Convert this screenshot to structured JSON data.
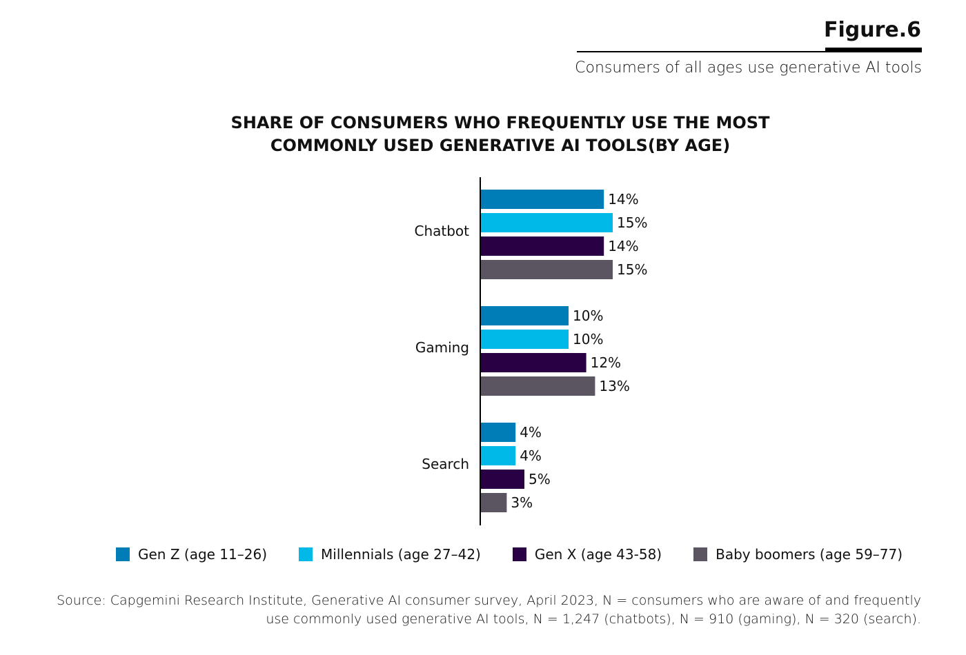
{
  "header": {
    "figure_label": "Figure.6",
    "subtitle": "Consumers of all ages use generative AI tools"
  },
  "chart_data": {
    "type": "bar",
    "orientation": "horizontal",
    "title": "SHARE OF CONSUMERS WHO FREQUENTLY USE THE MOST COMMONLY USED GENERATIVE AI TOOLS(BY AGE)",
    "title_lines": [
      "SHARE OF CONSUMERS WHO FREQUENTLY USE THE MOST",
      "COMMONLY USED GENERATIVE AI TOOLS(BY AGE)"
    ],
    "categories": [
      "Chatbot",
      "Gaming",
      "Search"
    ],
    "unit": "%",
    "xlim": [
      0,
      16
    ],
    "grid": false,
    "legend_position": "bottom",
    "series": [
      {
        "name": "Gen Z (age 11–26)",
        "color": "#007DB6",
        "values": [
          14,
          10,
          4
        ]
      },
      {
        "name": "Millennials (age 27–42)",
        "color": "#00B9E8",
        "values": [
          15,
          10,
          4
        ]
      },
      {
        "name": "Gen X (age 43-58)",
        "color": "#2A0045",
        "values": [
          14,
          12,
          5
        ]
      },
      {
        "name": "Baby boomers (age 59–77)",
        "color": "#5A5560",
        "values": [
          15,
          13,
          3
        ]
      }
    ]
  },
  "source": {
    "line1": "Source: Capgemini Research Institute, Generative AI consumer survey, April 2023, N = consumers who are aware of and frequently",
    "line2": "use commonly used generative AI tools, N = 1,247 (chatbots), N = 910 (gaming), N = 320 (search)."
  }
}
